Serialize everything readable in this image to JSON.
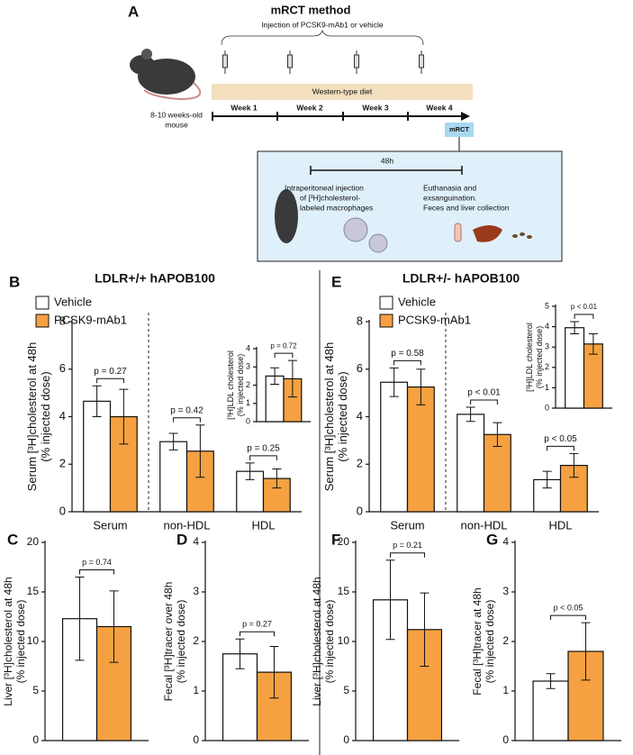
{
  "panel_labels": {
    "A": "A",
    "B": "B",
    "C": "C",
    "D": "D",
    "E": "E",
    "F": "F",
    "G": "G"
  },
  "diagram": {
    "title": "mRCT method",
    "injection": "Injection of PCSK9-mAb1 or vehicle",
    "diet": "Western-type diet",
    "weeks": [
      "Week 1",
      "Week 2",
      "Week 3",
      "Week 4"
    ],
    "mrct": "mRCT",
    "mouse": [
      "8-10 weeks-old",
      "mouse"
    ],
    "duration": "48h",
    "step1": [
      "Intraperitoneal injection",
      "of [³H]cholesterol-",
      "labeled macrophages"
    ],
    "step2": [
      "Euthanasia and",
      "exsanguination.",
      "Feces and liver collection"
    ]
  },
  "chart_data": [
    {
      "type": "bar",
      "title": "LDLR+/+ hAPOB100",
      "ylabel": [
        "Serum [³H]cholesterol at 48h",
        "(% injected dose)"
      ],
      "categories": [
        "Serum",
        "non-HDL",
        "HDL"
      ],
      "series": [
        {
          "name": "Vehicle",
          "color": "#ffffff",
          "values": [
            4.65,
            2.95,
            1.7
          ],
          "errors": [
            0.65,
            0.35,
            0.35
          ]
        },
        {
          "name": "PCSK9-mAb1",
          "color": "#f5a142",
          "values": [
            4.0,
            2.55,
            1.4
          ],
          "errors": [
            1.15,
            1.1,
            0.4
          ]
        }
      ],
      "p_values": [
        "p = 0.27",
        "p = 0.42",
        "p = 0.25"
      ],
      "ylim": [
        0,
        8
      ],
      "yticks": [
        0,
        2,
        4,
        6,
        8
      ]
    },
    {
      "type": "bar",
      "ylabel": [
        "[³H]LDL cholesterol",
        "(% injected dose)"
      ],
      "categories": [
        null
      ],
      "series": [
        {
          "color": "#ffffff",
          "values": [
            2.5
          ],
          "errors": [
            0.45
          ]
        },
        {
          "color": "#f5a142",
          "values": [
            2.35
          ],
          "errors": [
            1.0
          ]
        }
      ],
      "p_values": [
        "p = 0.72"
      ],
      "ylim": [
        0,
        4
      ],
      "yticks": [
        0,
        1,
        2,
        3,
        4
      ]
    },
    {
      "type": "bar",
      "title": "LDLR+/- hAPOB100",
      "ylabel": [
        "Serum [³H]cholesterol at 48h",
        "(% injected dose)"
      ],
      "categories": [
        "Serum",
        "non-HDL",
        "HDL"
      ],
      "series": [
        {
          "name": "Vehicle",
          "color": "#ffffff",
          "values": [
            5.45,
            4.1,
            1.35
          ],
          "errors": [
            0.6,
            0.3,
            0.35
          ]
        },
        {
          "name": "PCSK9-mAb1",
          "color": "#f5a142",
          "values": [
            5.25,
            3.25,
            1.95
          ],
          "errors": [
            0.75,
            0.5,
            0.5
          ]
        }
      ],
      "p_values": [
        "p = 0.58",
        "p < 0.01",
        "p < 0.05"
      ],
      "ylim": [
        0,
        8
      ],
      "yticks": [
        0,
        2,
        4,
        6,
        8
      ]
    },
    {
      "type": "bar",
      "ylabel": [
        "[³H]LDL cholesterol",
        "(% injected dose)"
      ],
      "categories": [
        null
      ],
      "series": [
        {
          "color": "#ffffff",
          "values": [
            3.95
          ],
          "errors": [
            0.3
          ]
        },
        {
          "color": "#f5a142",
          "values": [
            3.15
          ],
          "errors": [
            0.5
          ]
        }
      ],
      "p_values": [
        "p < 0.01"
      ],
      "ylim": [
        0,
        5
      ],
      "yticks": [
        0,
        1,
        2,
        3,
        4,
        5
      ]
    },
    {
      "type": "bar",
      "ylabel": [
        "Liver [³H]cholesterol at 48h",
        "(% injected dose)"
      ],
      "categories": [
        null
      ],
      "series": [
        {
          "color": "#ffffff",
          "values": [
            12.3
          ],
          "errors": [
            4.2
          ]
        },
        {
          "color": "#f5a142",
          "values": [
            11.5
          ],
          "errors": [
            3.6
          ]
        }
      ],
      "p_values": [
        "p = 0.74"
      ],
      "ylim": [
        0,
        20
      ],
      "yticks": [
        0,
        5,
        10,
        15,
        20
      ]
    },
    {
      "type": "bar",
      "ylabel": [
        "Fecal [³H]tracer over 48h",
        "(% injected dose)"
      ],
      "categories": [
        null
      ],
      "series": [
        {
          "color": "#ffffff",
          "values": [
            1.75
          ],
          "errors": [
            0.3
          ]
        },
        {
          "color": "#f5a142",
          "values": [
            1.38
          ],
          "errors": [
            0.52
          ]
        }
      ],
      "p_values": [
        "p = 0.27"
      ],
      "ylim": [
        0,
        4
      ],
      "yticks": [
        0,
        1,
        2,
        3,
        4
      ]
    },
    {
      "type": "bar",
      "ylabel": [
        "Liver [³H]cholesterol at 48h",
        "(% injected dose)"
      ],
      "categories": [
        null
      ],
      "series": [
        {
          "color": "#ffffff",
          "values": [
            14.2
          ],
          "errors": [
            4.0
          ]
        },
        {
          "color": "#f5a142",
          "values": [
            11.2
          ],
          "errors": [
            3.7
          ]
        }
      ],
      "p_values": [
        "p = 0.21"
      ],
      "ylim": [
        0,
        20
      ],
      "yticks": [
        0,
        5,
        10,
        15,
        20
      ]
    },
    {
      "type": "bar",
      "ylabel": [
        "Fecal [³H]tracer at 48h",
        "(% injected dose)"
      ],
      "categories": [
        null
      ],
      "series": [
        {
          "color": "#ffffff",
          "values": [
            1.2
          ],
          "errors": [
            0.15
          ]
        },
        {
          "color": "#f5a142",
          "values": [
            1.8
          ],
          "errors": [
            0.58
          ]
        }
      ],
      "p_values": [
        "p < 0.05"
      ],
      "ylim": [
        0,
        4
      ],
      "yticks": [
        0,
        1,
        2,
        3,
        4
      ]
    }
  ]
}
